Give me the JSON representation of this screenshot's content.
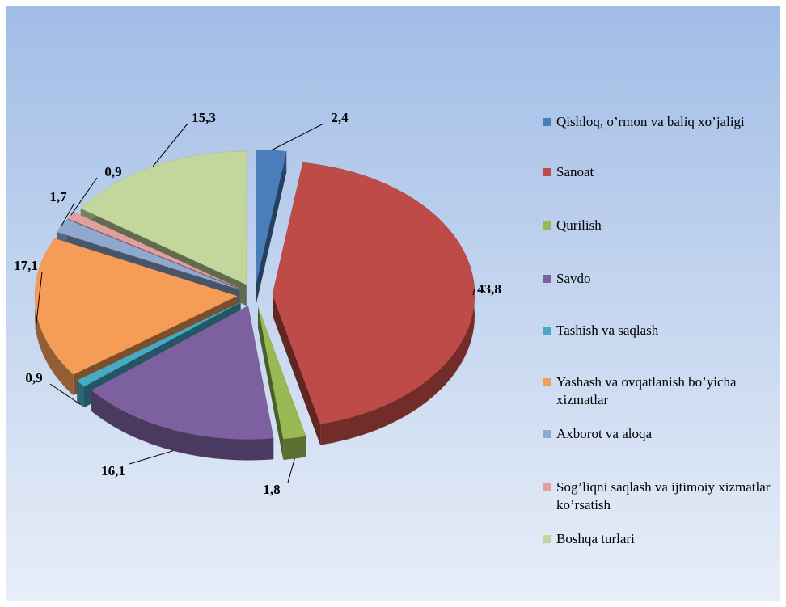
{
  "chart_data": {
    "type": "pie",
    "categories": [
      "Qishloq, o’rmon va baliq xo’jaligi",
      "Sanoat",
      "Qurilish",
      "Savdo",
      "Tashish va saqlash",
      "Yashash va ovqatlanish bo’yicha xizmatlar",
      "Axborot va aloqa",
      "Sog’liqni saqlash va ijtimoiy xizmatlar ko’rsatish",
      "Boshqa turlari"
    ],
    "values": [
      2.4,
      43.8,
      1.8,
      16.1,
      0.9,
      17.1,
      1.7,
      0.9,
      15.3
    ],
    "value_labels": [
      "2,4",
      "43,8",
      "1,8",
      "16,1",
      "0,9",
      "17,1",
      "1,7",
      "0,9",
      "15,3"
    ],
    "colors": [
      "#4a7ebb",
      "#be4b48",
      "#98b954",
      "#7d60a0",
      "#46aac5",
      "#f59d56",
      "#8fa8d0",
      "#e0a09e",
      "#c3d69b"
    ],
    "legend": "right"
  }
}
